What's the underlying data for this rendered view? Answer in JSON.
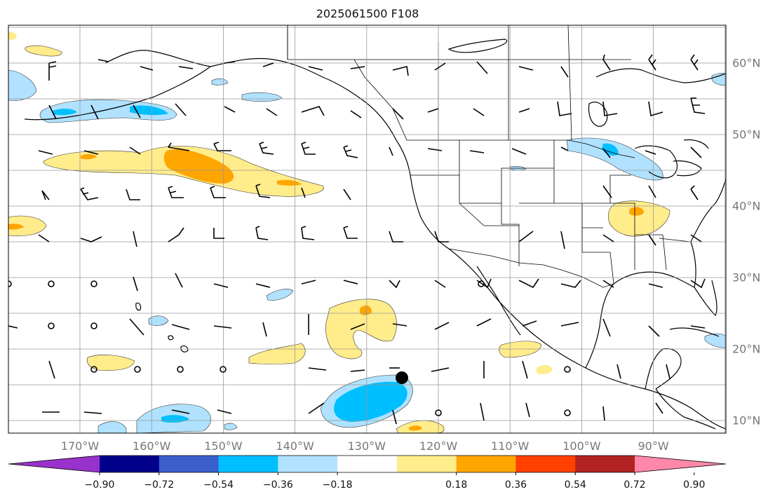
{
  "title": "2025061500 F108",
  "map": {
    "lat_labels": [
      "60°N",
      "50°N",
      "40°N",
      "30°N",
      "20°N",
      "10°N"
    ],
    "lon_labels": [
      "170°W",
      "160°W",
      "150°W",
      "140°W",
      "130°W",
      "120°W",
      "110°W",
      "100°W",
      "90°W"
    ],
    "grid_lats": [
      65,
      60,
      55,
      50,
      45,
      40,
      35,
      30,
      25,
      20,
      15,
      10
    ],
    "grid_lons": [
      -180,
      -170,
      -160,
      -150,
      -140,
      -130,
      -120,
      -110,
      -100,
      -90,
      -80
    ]
  },
  "colorbar": {
    "ticks": [
      "−0.90",
      "−0.72",
      "−0.54",
      "−0.36",
      "−0.18",
      "0.18",
      "0.36",
      "0.54",
      "0.72",
      "0.90"
    ],
    "colors": [
      "#9932cc",
      "#00008b",
      "#3a5fcd",
      "#00bfff",
      "#b0e2ff",
      "#ffffff",
      "#ffec8b",
      "#ffa500",
      "#ff4000",
      "#b22222",
      "#ff88aa"
    ]
  },
  "colors": {
    "land_outline": "#000000",
    "grid": "#999999",
    "marker": "#000000"
  }
}
